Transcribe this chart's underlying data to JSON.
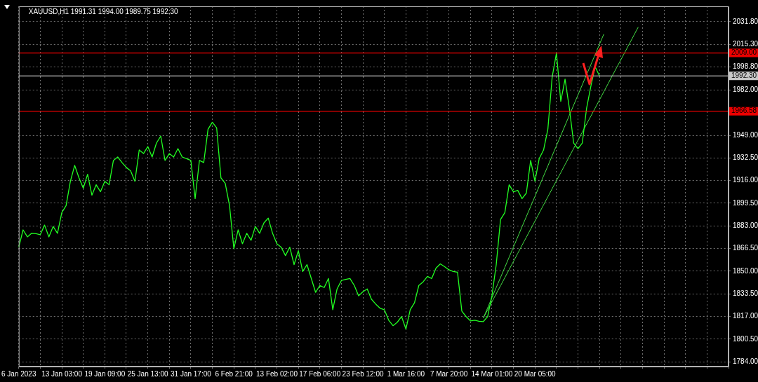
{
  "chart_data": {
    "type": "line",
    "title": "XAUUSD,H1 1991.31 1994.00 1989.75 1992.30",
    "categories": [
      "6 Jan 2023",
      null,
      null,
      null,
      null,
      null,
      null,
      null,
      null,
      null,
      "13 Jan 03:00",
      null,
      null,
      null,
      null,
      null,
      null,
      null,
      null,
      null,
      "19 Jan 09:00",
      null,
      null,
      null,
      null,
      null,
      null,
      null,
      null,
      null,
      "25 Jan 13:00",
      null,
      null,
      null,
      null,
      null,
      null,
      null,
      null,
      null,
      "31 Jan 17:00",
      null,
      null,
      null,
      null,
      null,
      null,
      null,
      null,
      null,
      "6 Feb 21:00",
      null,
      null,
      null,
      null,
      null,
      null,
      null,
      null,
      null,
      "13 Feb 02:00",
      null,
      null,
      null,
      null,
      null,
      null,
      null,
      null,
      null,
      "17 Feb 06:00",
      null,
      null,
      null,
      null,
      null,
      null,
      null,
      null,
      null,
      "23 Feb 12:00",
      null,
      null,
      null,
      null,
      null,
      null,
      null,
      null,
      null,
      "1 Mar 16:00",
      null,
      null,
      null,
      null,
      null,
      null,
      null,
      null,
      null,
      "7 Mar 20:00",
      null,
      null,
      null,
      null,
      null,
      null,
      null,
      null,
      null,
      "14 Mar 01:00",
      null,
      null,
      null,
      null,
      null,
      null,
      null,
      null,
      null,
      "20 Mar 05:00",
      null,
      null,
      null,
      null,
      null,
      null,
      null,
      null,
      null,
      null,
      null,
      null,
      null,
      null,
      null,
      null,
      null,
      null,
      null,
      null,
      null,
      null,
      null,
      null,
      null,
      null,
      null,
      null,
      null,
      null,
      null,
      null,
      null,
      null,
      null,
      null,
      null,
      null,
      null,
      null,
      null,
      null,
      null,
      null,
      null
    ],
    "series": [
      {
        "color": "#22ff22",
        "values": [
          1867.5,
          1880.1,
          1875.0,
          1877.6,
          1877.3,
          1876.6,
          1883.6,
          1875.0,
          1882.6,
          1877.6,
          1892.7,
          1897.8,
          1915.5,
          1927.1,
          1918.0,
          1910.5,
          1920.6,
          1905.4,
          1913.0,
          1907.9,
          1915.5,
          1913.0,
          1930.7,
          1933.2,
          1929.2,
          1925.6,
          1923.1,
          1915.5,
          1938.3,
          1935.7,
          1940.8,
          1933.2,
          1943.3,
          1948.4,
          1930.7,
          1935.7,
          1933.2,
          1939.3,
          1933.2,
          1932.0,
          1930.7,
          1902.9,
          1930.7,
          1929.2,
          1953.4,
          1958.5,
          1954.5,
          1918.0,
          1914.0,
          1897.8,
          1866.4,
          1880.1,
          1870.0,
          1877.6,
          1872.5,
          1882.6,
          1877.6,
          1885.2,
          1888.7,
          1877.6,
          1870.0,
          1867.5,
          1861.4,
          1867.5,
          1854.8,
          1864.9,
          1849.8,
          1854.8,
          1844.7,
          1834.6,
          1839.6,
          1838.1,
          1844.7,
          1821.9,
          1837.1,
          1843.2,
          1844.0,
          1844.7,
          1839.6,
          1832.1,
          1835.0,
          1837.1,
          1829.5,
          1826.0,
          1823.0,
          1821.9,
          1814.3,
          1810.3,
          1812.8,
          1816.9,
          1807.8,
          1821.9,
          1827.0,
          1839.6,
          1842.2,
          1846.2,
          1844.7,
          1852.3,
          1855.3,
          1853.3,
          1851.0,
          1849.8,
          1849.2,
          1820.9,
          1816.9,
          1813.8,
          1814.3,
          1813.5,
          1813.3,
          1816.9,
          1832.1,
          1854.8,
          1887.7,
          1892.7,
          1913.0,
          1907.9,
          1908.9,
          1902.9,
          1906.9,
          1930.7,
          1915.5,
          1932.2,
          1938.3,
          1953.4,
          1991.4,
          2009.0,
          1973.7,
          1989.9,
          1968.6,
          1943.3,
          1939.3,
          1943.3,
          1968.6,
          1984.8,
          1999.0,
          1992.3,
          null,
          null,
          null,
          null,
          null,
          null,
          null,
          null,
          null,
          null,
          null,
          null,
          null,
          null,
          null,
          null,
          null,
          null,
          null,
          null,
          null,
          null,
          null,
          null,
          null,
          null,
          null,
          null,
          null,
          null
        ]
      },
      {
        "type": "line",
        "color": "#44dd44",
        "values": [
          null,
          null,
          null,
          null,
          null,
          null,
          null,
          null,
          null,
          null,
          null,
          null,
          null,
          null,
          null,
          null,
          null,
          null,
          null,
          null,
          null,
          null,
          null,
          null,
          null,
          null,
          null,
          null,
          null,
          null,
          null,
          null,
          null,
          null,
          null,
          null,
          null,
          null,
          null,
          null,
          null,
          null,
          null,
          null,
          null,
          null,
          null,
          null,
          null,
          null,
          null,
          null,
          null,
          null,
          null,
          null,
          null,
          null,
          null,
          null,
          null,
          null,
          null,
          null,
          null,
          null,
          null,
          null,
          null,
          null,
          null,
          null,
          null,
          null,
          null,
          null,
          null,
          null,
          null,
          null,
          null,
          null,
          null,
          null,
          null,
          null,
          null,
          null,
          null,
          null,
          null,
          null,
          null,
          null,
          null,
          null,
          null,
          null,
          null,
          null,
          null,
          null,
          null,
          null,
          null,
          null,
          null,
          null,
          1815.9,
          1823.3,
          1830.7,
          1838.1,
          1845.4,
          1852.8,
          1860.2,
          1867.6,
          1875.0,
          1882.4,
          1889.8,
          1897.1,
          1904.5,
          1911.9,
          1919.3,
          1926.7,
          1934.1,
          1941.5,
          1948.8,
          1956.2,
          1963.6,
          1971.0,
          1978.4,
          1985.8,
          1993.2,
          2000.5,
          2007.9,
          2015.3,
          2022.7,
          null,
          null,
          null,
          null,
          null,
          null,
          null,
          null,
          null,
          null,
          null,
          null,
          null,
          null,
          null,
          null,
          null,
          null,
          null,
          null,
          null,
          null,
          null,
          null,
          null,
          null,
          null,
          null,
          null
        ]
      },
      {
        "type": "line",
        "color": "#44dd44",
        "values": [
          null,
          null,
          null,
          null,
          null,
          null,
          null,
          null,
          null,
          null,
          null,
          null,
          null,
          null,
          null,
          null,
          null,
          null,
          null,
          null,
          null,
          null,
          null,
          null,
          null,
          null,
          null,
          null,
          null,
          null,
          null,
          null,
          null,
          null,
          null,
          null,
          null,
          null,
          null,
          null,
          null,
          null,
          null,
          null,
          null,
          null,
          null,
          null,
          null,
          null,
          null,
          null,
          null,
          null,
          null,
          null,
          null,
          null,
          null,
          null,
          null,
          null,
          null,
          null,
          null,
          null,
          null,
          null,
          null,
          null,
          null,
          null,
          null,
          null,
          null,
          null,
          null,
          null,
          null,
          null,
          null,
          null,
          null,
          null,
          null,
          null,
          null,
          null,
          null,
          null,
          null,
          null,
          null,
          null,
          null,
          null,
          null,
          null,
          null,
          null,
          null,
          null,
          null,
          null,
          null,
          null,
          null,
          null,
          1815.9,
          1821.8,
          1827.7,
          1833.6,
          1839.4,
          1845.3,
          1851.2,
          1857.1,
          1863.0,
          1868.9,
          1874.8,
          1880.6,
          1886.5,
          1892.4,
          1898.3,
          1904.2,
          1910.1,
          1916.0,
          1921.8,
          1927.7,
          1933.6,
          1939.5,
          1945.4,
          1951.3,
          1957.2,
          1963.0,
          1968.9,
          1974.8,
          1980.7,
          1986.6,
          1992.5,
          1998.4,
          2004.2,
          2010.1,
          2016.0,
          2021.9,
          2027.8,
          null,
          null,
          null,
          null,
          null,
          null,
          null,
          null,
          null,
          null,
          null,
          null,
          null,
          null,
          null,
          null,
          null,
          null,
          null,
          null,
          null
        ]
      }
    ],
    "ylim": [
      1780.5,
      2043.0
    ],
    "yticks": [
      {
        "value": 1784,
        "label": "1784.00"
      },
      {
        "value": 1800.5,
        "label": "1800.50"
      },
      {
        "value": 1817,
        "label": "1817.00"
      },
      {
        "value": 1833.5,
        "label": "1833.50"
      },
      {
        "value": 1850,
        "label": "1850.00"
      },
      {
        "value": 1866.5,
        "label": "1866.50"
      },
      {
        "value": 1883,
        "label": "1883.00"
      },
      {
        "value": 1899.5,
        "label": "1899.50"
      },
      {
        "value": 1916,
        "label": "1916.00"
      },
      {
        "value": 1932.5,
        "label": "1932.50"
      },
      {
        "value": 1949,
        "label": "1949.00"
      },
      {
        "value": 1982,
        "label": "1982.00"
      },
      {
        "value": 1998.8,
        "label": "1998.80"
      },
      {
        "value": 2015.3,
        "label": "2015.30"
      },
      {
        "value": 2031.8,
        "label": "2031.80"
      }
    ],
    "ref_lines": [
      {
        "axis": "y",
        "value": 2009.0,
        "label": "2009.00",
        "color": "#ee0000"
      },
      {
        "axis": "y",
        "value": 1992.3,
        "label": "1992.30",
        "color": "#c8c8c8"
      },
      {
        "axis": "y",
        "value": 1966.58,
        "label": "1966.58",
        "color": "#ee0000"
      }
    ],
    "grid": true,
    "marker": "none",
    "line_style": "solid"
  }
}
